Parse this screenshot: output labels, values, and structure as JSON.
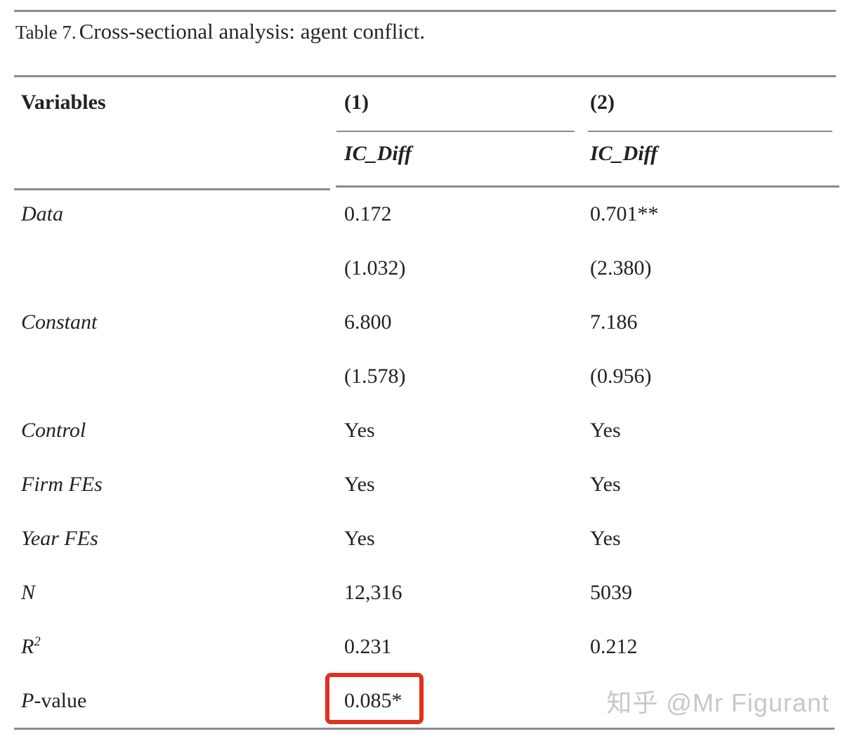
{
  "title": {
    "prefix": "Table 7.",
    "main": "Cross-sectional analysis: agent conflict."
  },
  "table": {
    "columns": {
      "variables": "Variables",
      "col1": "(1)",
      "col2": "(2)",
      "col1_dep": "IC_Diff",
      "col2_dep": "IC_Diff"
    },
    "rows": [
      {
        "it": "Data",
        "rest": "",
        "sup": "",
        "c1": "0.172",
        "c2": "0.701**"
      },
      {
        "it": "",
        "rest": "",
        "sup": "",
        "c1": "(1.032)",
        "c2": "(2.380)"
      },
      {
        "it": "Constant",
        "rest": "",
        "sup": "",
        "c1": "6.800",
        "c2": "7.186"
      },
      {
        "it": "",
        "rest": "",
        "sup": "",
        "c1": "(1.578)",
        "c2": "(0.956)"
      },
      {
        "it": "Control",
        "rest": "",
        "sup": "",
        "c1": "Yes",
        "c2": "Yes"
      },
      {
        "it": "Firm FEs",
        "rest": "",
        "sup": "",
        "c1": "Yes",
        "c2": "Yes"
      },
      {
        "it": "Year FEs",
        "rest": "",
        "sup": "",
        "c1": "Yes",
        "c2": "Yes"
      },
      {
        "it": "N",
        "rest": "",
        "sup": "",
        "c1": "12,316",
        "c2": "5039"
      },
      {
        "it": "R",
        "rest": "",
        "sup": "2",
        "c1": "0.231",
        "c2": "0.212"
      },
      {
        "it": "P",
        "rest": "-value",
        "sup": "",
        "c1": "0.085*",
        "c2": ""
      }
    ]
  },
  "highlight": {
    "highlighted_value": "0.085*",
    "border_color": "#e0301e"
  },
  "watermark": {
    "text": "知乎 @Mr Figurant",
    "color": "#c8c8c5"
  }
}
